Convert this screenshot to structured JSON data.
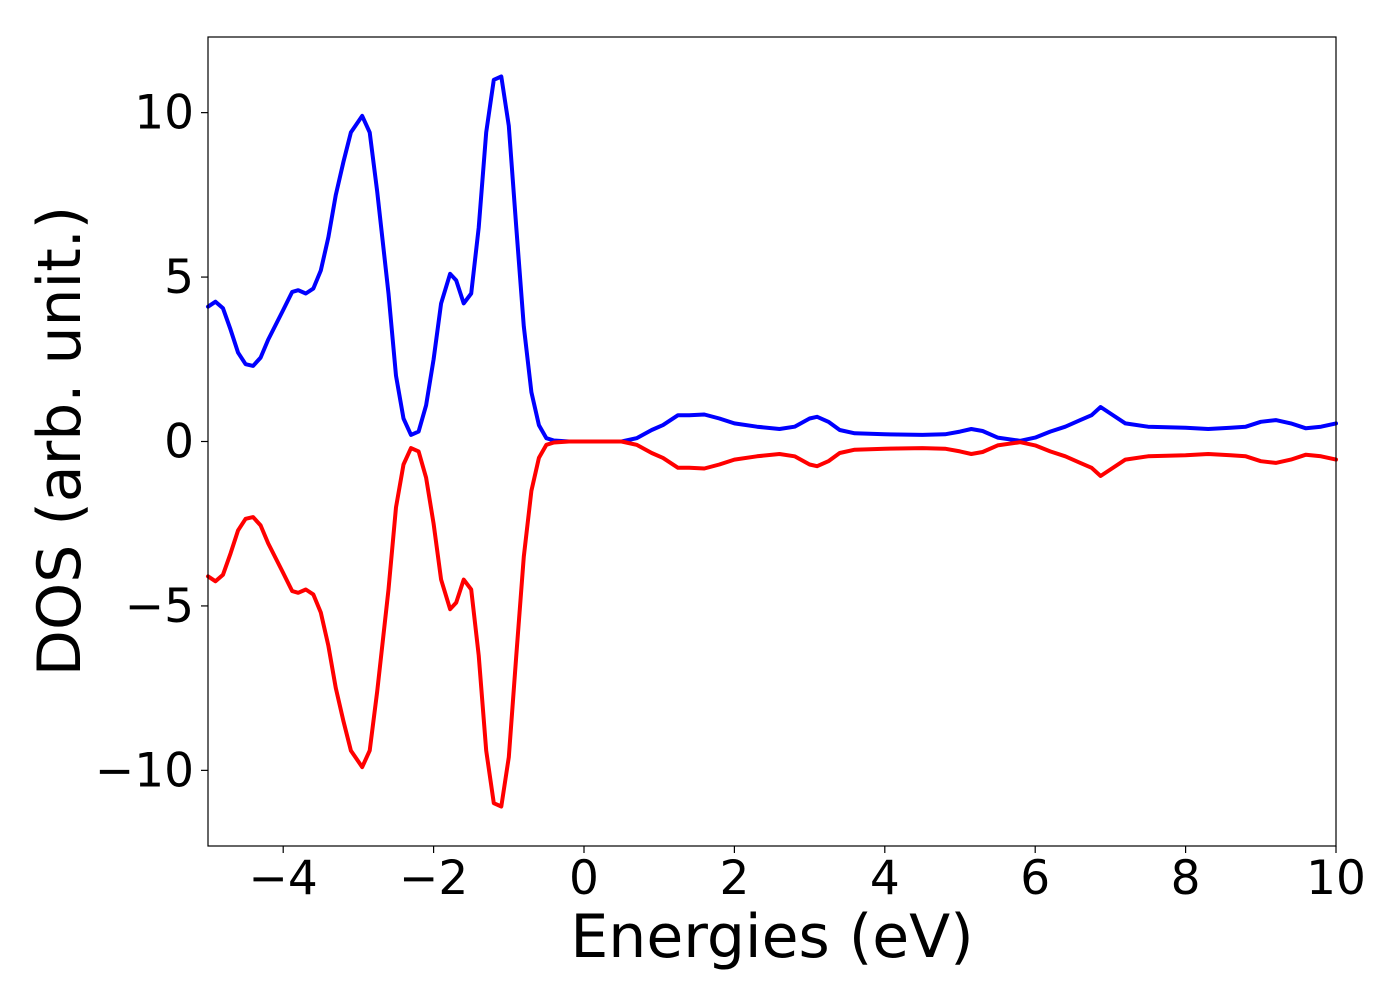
{
  "chart_data": {
    "type": "line",
    "title": "",
    "xlabel": "Energies (eV)",
    "ylabel": "DOS (arb. unit.)",
    "xlim": [
      -5,
      10
    ],
    "ylim": [
      -12.3,
      12.3
    ],
    "xticks": [
      -4,
      -2,
      0,
      2,
      4,
      6,
      8,
      10
    ],
    "xtick_labels": [
      "−4",
      "−2",
      "0",
      "2",
      "4",
      "6",
      "8",
      "10"
    ],
    "yticks": [
      -10,
      -5,
      0,
      5,
      10
    ],
    "ytick_labels": [
      "−10",
      "−5",
      "0",
      "5",
      "10"
    ],
    "grid": false,
    "legend": "none",
    "series": [
      {
        "color": "#0000ff",
        "points": [
          [
            -5.0,
            4.1
          ],
          [
            -4.9,
            4.25
          ],
          [
            -4.8,
            4.05
          ],
          [
            -4.7,
            3.4
          ],
          [
            -4.6,
            2.7
          ],
          [
            -4.5,
            2.35
          ],
          [
            -4.4,
            2.3
          ],
          [
            -4.3,
            2.55
          ],
          [
            -4.2,
            3.1
          ],
          [
            -4.0,
            4.0
          ],
          [
            -3.88,
            4.55
          ],
          [
            -3.8,
            4.6
          ],
          [
            -3.7,
            4.5
          ],
          [
            -3.6,
            4.65
          ],
          [
            -3.5,
            5.2
          ],
          [
            -3.4,
            6.2
          ],
          [
            -3.3,
            7.5
          ],
          [
            -3.2,
            8.5
          ],
          [
            -3.1,
            9.4
          ],
          [
            -2.95,
            9.9
          ],
          [
            -2.85,
            9.4
          ],
          [
            -2.75,
            7.6
          ],
          [
            -2.6,
            4.5
          ],
          [
            -2.5,
            2.0
          ],
          [
            -2.4,
            0.7
          ],
          [
            -2.3,
            0.2
          ],
          [
            -2.2,
            0.3
          ],
          [
            -2.1,
            1.1
          ],
          [
            -2.0,
            2.5
          ],
          [
            -1.9,
            4.2
          ],
          [
            -1.78,
            5.1
          ],
          [
            -1.7,
            4.9
          ],
          [
            -1.6,
            4.2
          ],
          [
            -1.5,
            4.5
          ],
          [
            -1.4,
            6.5
          ],
          [
            -1.3,
            9.4
          ],
          [
            -1.2,
            11.0
          ],
          [
            -1.1,
            11.1
          ],
          [
            -1.0,
            9.6
          ],
          [
            -0.9,
            6.5
          ],
          [
            -0.8,
            3.5
          ],
          [
            -0.7,
            1.5
          ],
          [
            -0.6,
            0.5
          ],
          [
            -0.5,
            0.1
          ],
          [
            -0.4,
            0.03
          ],
          [
            -0.2,
            0.0
          ],
          [
            0.5,
            0.0
          ],
          [
            0.7,
            0.1
          ],
          [
            0.9,
            0.35
          ],
          [
            1.05,
            0.5
          ],
          [
            1.25,
            0.8
          ],
          [
            1.4,
            0.8
          ],
          [
            1.6,
            0.82
          ],
          [
            1.8,
            0.7
          ],
          [
            2.0,
            0.55
          ],
          [
            2.3,
            0.45
          ],
          [
            2.6,
            0.38
          ],
          [
            2.8,
            0.45
          ],
          [
            3.0,
            0.7
          ],
          [
            3.1,
            0.75
          ],
          [
            3.25,
            0.6
          ],
          [
            3.4,
            0.35
          ],
          [
            3.6,
            0.25
          ],
          [
            4.0,
            0.22
          ],
          [
            4.5,
            0.2
          ],
          [
            4.8,
            0.22
          ],
          [
            5.0,
            0.3
          ],
          [
            5.15,
            0.38
          ],
          [
            5.3,
            0.32
          ],
          [
            5.5,
            0.12
          ],
          [
            5.8,
            0.02
          ],
          [
            6.0,
            0.12
          ],
          [
            6.2,
            0.3
          ],
          [
            6.4,
            0.45
          ],
          [
            6.6,
            0.65
          ],
          [
            6.75,
            0.8
          ],
          [
            6.87,
            1.05
          ],
          [
            7.0,
            0.85
          ],
          [
            7.2,
            0.55
          ],
          [
            7.5,
            0.45
          ],
          [
            8.0,
            0.42
          ],
          [
            8.3,
            0.38
          ],
          [
            8.6,
            0.42
          ],
          [
            8.8,
            0.45
          ],
          [
            9.0,
            0.6
          ],
          [
            9.2,
            0.65
          ],
          [
            9.4,
            0.55
          ],
          [
            9.6,
            0.4
          ],
          [
            9.8,
            0.45
          ],
          [
            10.0,
            0.55
          ]
        ]
      },
      {
        "color": "#ff0000",
        "points": [
          [
            -5.0,
            -4.1
          ],
          [
            -4.9,
            -4.25
          ],
          [
            -4.8,
            -4.05
          ],
          [
            -4.7,
            -3.4
          ],
          [
            -4.6,
            -2.7
          ],
          [
            -4.5,
            -2.35
          ],
          [
            -4.4,
            -2.3
          ],
          [
            -4.3,
            -2.55
          ],
          [
            -4.2,
            -3.1
          ],
          [
            -4.0,
            -4.0
          ],
          [
            -3.88,
            -4.55
          ],
          [
            -3.8,
            -4.6
          ],
          [
            -3.7,
            -4.5
          ],
          [
            -3.6,
            -4.65
          ],
          [
            -3.5,
            -5.2
          ],
          [
            -3.4,
            -6.2
          ],
          [
            -3.3,
            -7.5
          ],
          [
            -3.2,
            -8.5
          ],
          [
            -3.1,
            -9.4
          ],
          [
            -2.95,
            -9.9
          ],
          [
            -2.85,
            -9.4
          ],
          [
            -2.75,
            -7.6
          ],
          [
            -2.6,
            -4.5
          ],
          [
            -2.5,
            -2.0
          ],
          [
            -2.4,
            -0.7
          ],
          [
            -2.3,
            -0.2
          ],
          [
            -2.2,
            -0.3
          ],
          [
            -2.1,
            -1.1
          ],
          [
            -2.0,
            -2.5
          ],
          [
            -1.9,
            -4.2
          ],
          [
            -1.78,
            -5.1
          ],
          [
            -1.7,
            -4.9
          ],
          [
            -1.6,
            -4.2
          ],
          [
            -1.5,
            -4.5
          ],
          [
            -1.4,
            -6.5
          ],
          [
            -1.3,
            -9.4
          ],
          [
            -1.2,
            -11.0
          ],
          [
            -1.1,
            -11.1
          ],
          [
            -1.0,
            -9.6
          ],
          [
            -0.9,
            -6.5
          ],
          [
            -0.8,
            -3.5
          ],
          [
            -0.7,
            -1.5
          ],
          [
            -0.6,
            -0.5
          ],
          [
            -0.5,
            -0.1
          ],
          [
            -0.4,
            -0.03
          ],
          [
            -0.2,
            0.0
          ],
          [
            0.5,
            0.0
          ],
          [
            0.7,
            -0.1
          ],
          [
            0.9,
            -0.35
          ],
          [
            1.05,
            -0.5
          ],
          [
            1.25,
            -0.8
          ],
          [
            1.4,
            -0.8
          ],
          [
            1.6,
            -0.82
          ],
          [
            1.8,
            -0.7
          ],
          [
            2.0,
            -0.55
          ],
          [
            2.3,
            -0.45
          ],
          [
            2.6,
            -0.38
          ],
          [
            2.8,
            -0.45
          ],
          [
            3.0,
            -0.7
          ],
          [
            3.1,
            -0.75
          ],
          [
            3.25,
            -0.6
          ],
          [
            3.4,
            -0.35
          ],
          [
            3.6,
            -0.25
          ],
          [
            4.0,
            -0.22
          ],
          [
            4.5,
            -0.2
          ],
          [
            4.8,
            -0.22
          ],
          [
            5.0,
            -0.3
          ],
          [
            5.15,
            -0.38
          ],
          [
            5.3,
            -0.32
          ],
          [
            5.5,
            -0.12
          ],
          [
            5.8,
            -0.02
          ],
          [
            6.0,
            -0.12
          ],
          [
            6.2,
            -0.3
          ],
          [
            6.4,
            -0.45
          ],
          [
            6.6,
            -0.65
          ],
          [
            6.75,
            -0.8
          ],
          [
            6.87,
            -1.05
          ],
          [
            7.0,
            -0.85
          ],
          [
            7.2,
            -0.55
          ],
          [
            7.5,
            -0.45
          ],
          [
            8.0,
            -0.42
          ],
          [
            8.3,
            -0.38
          ],
          [
            8.6,
            -0.42
          ],
          [
            8.8,
            -0.45
          ],
          [
            9.0,
            -0.6
          ],
          [
            9.2,
            -0.65
          ],
          [
            9.4,
            -0.55
          ],
          [
            9.6,
            -0.4
          ],
          [
            9.8,
            -0.45
          ],
          [
            10.0,
            -0.55
          ]
        ]
      }
    ]
  }
}
